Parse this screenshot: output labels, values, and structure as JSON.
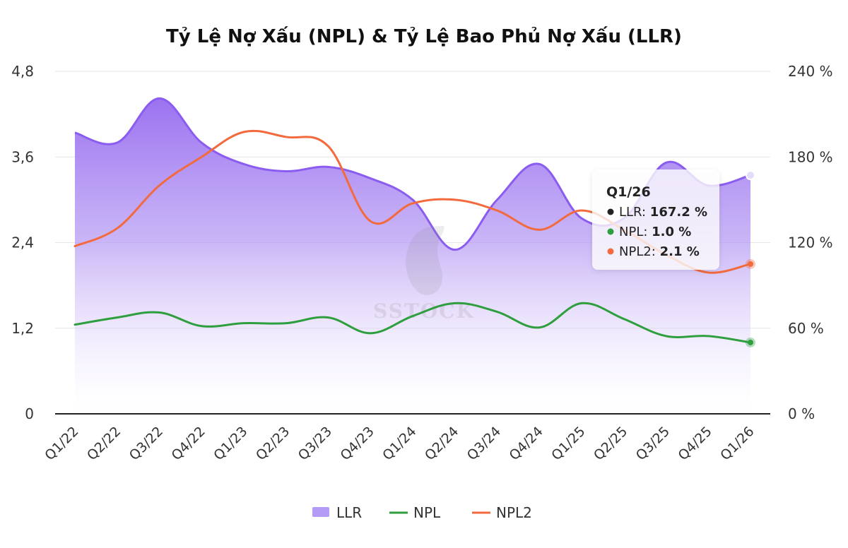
{
  "chart_data": {
    "type": "line",
    "title": "Tỷ Lệ Nợ Xấu (NPL) & Tỷ Lệ Bao Phủ Nợ Xấu (LLR)",
    "categories": [
      "Q1/22",
      "Q2/22",
      "Q3/22",
      "Q4/22",
      "Q1/23",
      "Q2/23",
      "Q3/23",
      "Q4/23",
      "Q1/24",
      "Q2/24",
      "Q3/24",
      "Q4/24",
      "Q1/25",
      "Q2/25",
      "Q3/25",
      "Q4/25",
      "Q1/26"
    ],
    "y_left": {
      "ticks": [
        "0",
        "1,2",
        "2,4",
        "3,6",
        "4,8"
      ],
      "range": [
        0,
        4.8
      ]
    },
    "y_right": {
      "ticks": [
        "0 %",
        "60 %",
        "120 %",
        "180 %",
        "240 %"
      ],
      "range": [
        0,
        240
      ]
    },
    "series": [
      {
        "name": "LLR",
        "type": "area",
        "axis": "right",
        "color": "#9f7aea",
        "values": [
          197,
          190,
          221,
          190,
          175,
          170,
          173,
          165,
          150,
          115,
          150,
          175,
          137,
          137,
          176,
          160,
          167.2
        ]
      },
      {
        "name": "NPL",
        "type": "line",
        "axis": "left",
        "color": "#2e9e3e",
        "values": [
          1.25,
          1.35,
          1.42,
          1.23,
          1.27,
          1.27,
          1.35,
          1.13,
          1.37,
          1.55,
          1.43,
          1.21,
          1.55,
          1.33,
          1.09,
          1.09,
          1.0
        ]
      },
      {
        "name": "NPL2",
        "type": "line",
        "axis": "left",
        "color": "#f26a3d",
        "values": [
          2.35,
          2.6,
          3.2,
          3.6,
          3.95,
          3.88,
          3.75,
          2.7,
          2.95,
          3.0,
          2.85,
          2.58,
          2.85,
          2.58,
          2.23,
          1.98,
          2.1
        ]
      }
    ],
    "legend": {
      "placement": "bottom"
    },
    "tooltip": {
      "title": "Q1/26",
      "rows": [
        {
          "label": "LLR",
          "value": "167.2 %",
          "color": "#222222"
        },
        {
          "label": "NPL",
          "value": "1.0 %",
          "color": "#2e9e3e"
        },
        {
          "label": "NPL2",
          "value": "2.1 %",
          "color": "#f26a3d"
        }
      ]
    },
    "watermark": "SSTOCK"
  }
}
